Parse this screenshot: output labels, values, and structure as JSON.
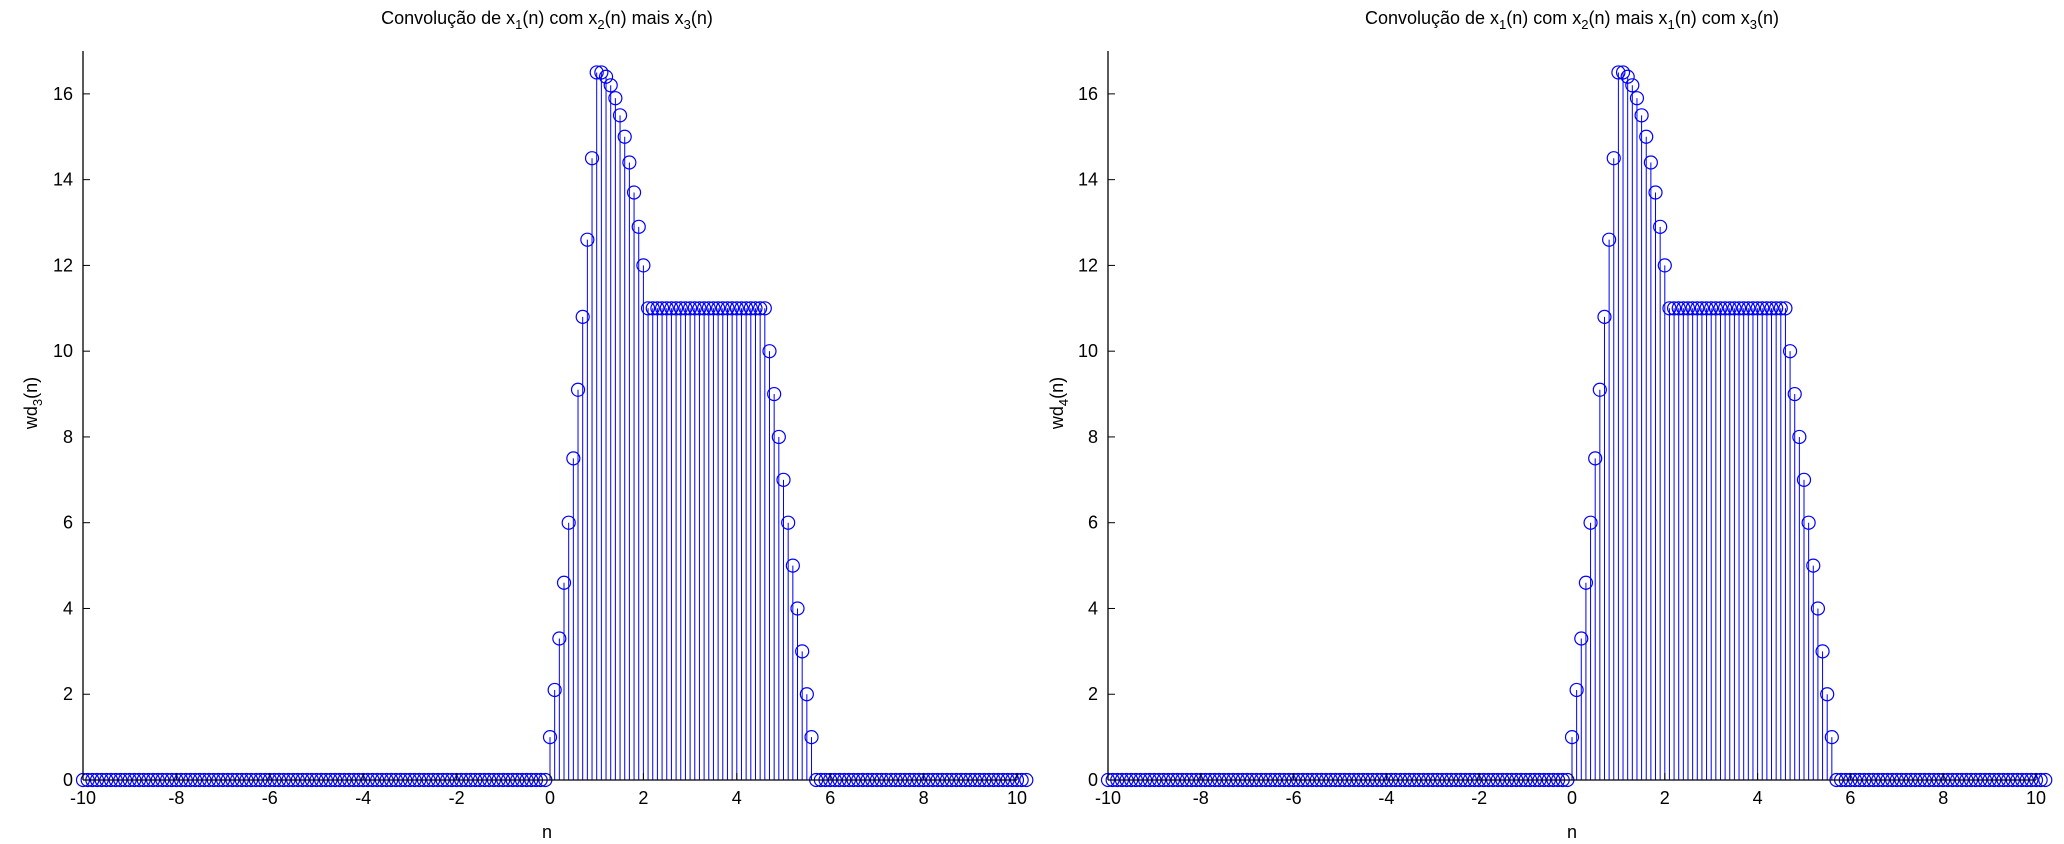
{
  "colors": {
    "stem": "#0000ff",
    "axis": "#000000",
    "background": "#ffffff"
  },
  "chart_data": [
    {
      "type": "stem",
      "title": {
        "prefix": "Convolução de x",
        "s1": "1",
        "mid1": "(n) com x",
        "s2": "2",
        "mid2": "(n) mais x",
        "s3": "3",
        "suffix": "(n)"
      },
      "xlabel": "n",
      "ylabel": {
        "base": "wd",
        "sub": "3",
        "suffix": "(n)"
      },
      "xlim": [
        -10,
        10
      ],
      "ylim": [
        0,
        17
      ],
      "xticks": [
        "-10",
        "-8",
        "-6",
        "-4",
        "-2",
        "0",
        "2",
        "4",
        "6",
        "8",
        "10"
      ],
      "yticks": [
        "0",
        "2",
        "4",
        "6",
        "8",
        "10",
        "12",
        "14",
        "16"
      ],
      "x_start": -10,
      "x_step": 0.1,
      "values": [
        0,
        0,
        0,
        0,
        0,
        0,
        0,
        0,
        0,
        0,
        0,
        0,
        0,
        0,
        0,
        0,
        0,
        0,
        0,
        0,
        0,
        0,
        0,
        0,
        0,
        0,
        0,
        0,
        0,
        0,
        0,
        0,
        0,
        0,
        0,
        0,
        0,
        0,
        0,
        0,
        0,
        0,
        0,
        0,
        0,
        0,
        0,
        0,
        0,
        0,
        0,
        0,
        0,
        0,
        0,
        0,
        0,
        0,
        0,
        0,
        0,
        0,
        0,
        0,
        0,
        0,
        0,
        0,
        0,
        0,
        0,
        0,
        0,
        0,
        0,
        0,
        0,
        0,
        0,
        0,
        0,
        0,
        0,
        0,
        0,
        0,
        0,
        0,
        0,
        0,
        0,
        0,
        0,
        0,
        0,
        0,
        0,
        0,
        0,
        0,
        1,
        2.1,
        3.3,
        4.6,
        6,
        7.5,
        9.1,
        10.8,
        12.6,
        14.5,
        16.5,
        16.5,
        16.4,
        16.2,
        15.9,
        15.5,
        15,
        14.4,
        13.7,
        12.9,
        12,
        11,
        11,
        11,
        11,
        11,
        11,
        11,
        11,
        11,
        11,
        11,
        11,
        11,
        11,
        11,
        11,
        11,
        11,
        11,
        11,
        11,
        11,
        11,
        11,
        11,
        11,
        10,
        9,
        8,
        7,
        6,
        5,
        4,
        3,
        2,
        1,
        0,
        0,
        0,
        0,
        0,
        0,
        0,
        0,
        0,
        0,
        0,
        0,
        0,
        0,
        0,
        0,
        0,
        0,
        0,
        0,
        0,
        0,
        0,
        0,
        0,
        0,
        0,
        0,
        0,
        0,
        0,
        0,
        0,
        0,
        0,
        0,
        0,
        0,
        0,
        0,
        0,
        0,
        0,
        0,
        0,
        0
      ]
    },
    {
      "type": "stem",
      "title": {
        "prefix": "Convolução  de x",
        "s1": "1",
        "mid1": "(n) com x",
        "s2": "2",
        "mid2": "(n) mais x",
        "s3": "1",
        "mid3": "(n) com x",
        "s4": "3",
        "suffix": "(n)"
      },
      "xlabel": "n",
      "ylabel": {
        "base": "wd",
        "sub": "4",
        "suffix": "(n)"
      },
      "xlim": [
        -10,
        10
      ],
      "ylim": [
        0,
        17
      ],
      "xticks": [
        "-10",
        "-8",
        "-6",
        "-4",
        "-2",
        "0",
        "2",
        "4",
        "6",
        "8",
        "10"
      ],
      "yticks": [
        "0",
        "2",
        "4",
        "6",
        "8",
        "10",
        "12",
        "14",
        "16"
      ],
      "x_start": -10,
      "x_step": 0.1,
      "values": [
        0,
        0,
        0,
        0,
        0,
        0,
        0,
        0,
        0,
        0,
        0,
        0,
        0,
        0,
        0,
        0,
        0,
        0,
        0,
        0,
        0,
        0,
        0,
        0,
        0,
        0,
        0,
        0,
        0,
        0,
        0,
        0,
        0,
        0,
        0,
        0,
        0,
        0,
        0,
        0,
        0,
        0,
        0,
        0,
        0,
        0,
        0,
        0,
        0,
        0,
        0,
        0,
        0,
        0,
        0,
        0,
        0,
        0,
        0,
        0,
        0,
        0,
        0,
        0,
        0,
        0,
        0,
        0,
        0,
        0,
        0,
        0,
        0,
        0,
        0,
        0,
        0,
        0,
        0,
        0,
        0,
        0,
        0,
        0,
        0,
        0,
        0,
        0,
        0,
        0,
        0,
        0,
        0,
        0,
        0,
        0,
        0,
        0,
        0,
        0,
        1,
        2.1,
        3.3,
        4.6,
        6,
        7.5,
        9.1,
        10.8,
        12.6,
        14.5,
        16.5,
        16.5,
        16.4,
        16.2,
        15.9,
        15.5,
        15,
        14.4,
        13.7,
        12.9,
        12,
        11,
        11,
        11,
        11,
        11,
        11,
        11,
        11,
        11,
        11,
        11,
        11,
        11,
        11,
        11,
        11,
        11,
        11,
        11,
        11,
        11,
        11,
        11,
        11,
        11,
        11,
        10,
        9,
        8,
        7,
        6,
        5,
        4,
        3,
        2,
        1,
        0,
        0,
        0,
        0,
        0,
        0,
        0,
        0,
        0,
        0,
        0,
        0,
        0,
        0,
        0,
        0,
        0,
        0,
        0,
        0,
        0,
        0,
        0,
        0,
        0,
        0,
        0,
        0,
        0,
        0,
        0,
        0,
        0,
        0,
        0,
        0,
        0,
        0,
        0,
        0,
        0,
        0,
        0,
        0,
        0,
        0
      ]
    }
  ]
}
